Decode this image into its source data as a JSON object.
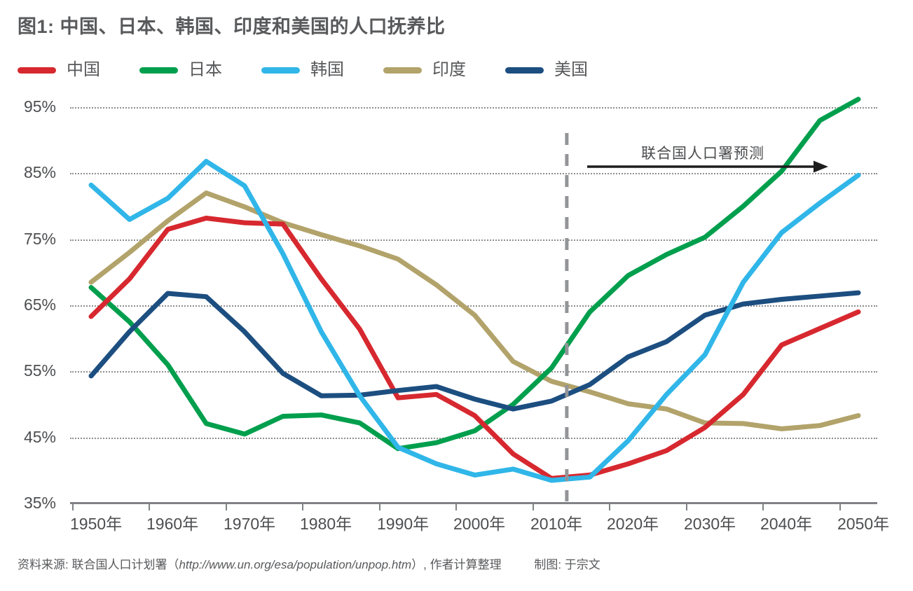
{
  "title": "图1: 中国、日本、韩国、印度和美国的人口抚养比",
  "legend": [
    {
      "id": "china",
      "label": "中国",
      "color": "#D7282F"
    },
    {
      "id": "japan",
      "label": "日本",
      "color": "#009F4D"
    },
    {
      "id": "korea",
      "label": "韩国",
      "color": "#30B6E8"
    },
    {
      "id": "india",
      "label": "印度",
      "color": "#B2A36B"
    },
    {
      "id": "us",
      "label": "美国",
      "color": "#1C4E80"
    }
  ],
  "chart_data": {
    "type": "line",
    "title": "图1: 中国、日本、韩国、印度和美国的人口抚养比",
    "x": [
      1950,
      1955,
      1960,
      1965,
      1970,
      1975,
      1980,
      1985,
      1990,
      1995,
      2000,
      2005,
      2010,
      2015,
      2020,
      2025,
      2030,
      2035,
      2040,
      2045,
      2050
    ],
    "x_tick_labels": [
      "1950年",
      "1960年",
      "1970年",
      "1980年",
      "1990年",
      "2000年",
      "2010年",
      "2020年",
      "2030年",
      "2040年",
      "2050年"
    ],
    "y_tick_labels": [
      "95%",
      "85%",
      "75%",
      "65%",
      "55%",
      "45%",
      "35%"
    ],
    "y_ticks": [
      95,
      85,
      75,
      65,
      55,
      45,
      35
    ],
    "ylim": [
      35,
      95
    ],
    "xlim": [
      1950,
      2050
    ],
    "grid": "horizontal-dotted",
    "legend_position": "top-left",
    "series": [
      {
        "id": "india",
        "name": "印度",
        "color": "#B2A36B",
        "values": [
          68.5,
          73.0,
          77.8,
          82.0,
          79.9,
          77.5,
          75.7,
          74.0,
          72.0,
          68.1,
          63.5,
          56.5,
          53.5,
          51.9,
          50.1,
          49.3,
          47.2,
          47.1,
          46.3,
          46.8,
          48.3
        ]
      },
      {
        "id": "japan",
        "name": "日本",
        "color": "#009F4D",
        "values": [
          67.7,
          62.5,
          56.0,
          47.1,
          45.5,
          48.2,
          48.4,
          47.2,
          43.3,
          44.2,
          46.0,
          50.0,
          55.5,
          64.0,
          69.5,
          72.7,
          75.3,
          80.0,
          85.3,
          93.0,
          96.2
        ]
      },
      {
        "id": "china",
        "name": "中国",
        "color": "#D7282F",
        "values": [
          63.3,
          69.0,
          76.5,
          78.2,
          77.5,
          77.3,
          69.0,
          61.4,
          51.0,
          51.5,
          48.3,
          42.5,
          38.8,
          39.3,
          41.0,
          43.0,
          46.5,
          51.5,
          59.0,
          61.5,
          64.0
        ]
      },
      {
        "id": "us",
        "name": "美国",
        "color": "#1C4E80",
        "values": [
          54.3,
          61.0,
          66.8,
          66.3,
          61.0,
          54.7,
          51.3,
          51.4,
          52.1,
          52.7,
          50.8,
          49.3,
          50.5,
          53.0,
          57.2,
          59.5,
          63.5,
          65.2,
          65.9,
          66.4,
          66.9
        ]
      },
      {
        "id": "korea",
        "name": "韩国",
        "color": "#30B6E8",
        "values": [
          83.2,
          78.0,
          81.2,
          86.8,
          83.1,
          72.8,
          61.0,
          51.3,
          43.5,
          41.0,
          39.3,
          40.2,
          38.5,
          39.0,
          44.5,
          51.5,
          57.5,
          68.5,
          76.0,
          80.5,
          84.7
        ]
      }
    ],
    "forecast_divider": {
      "year": 2012,
      "color": "#929497",
      "style": "dashed-vertical"
    },
    "annotation": {
      "text": "联合国人口署预测",
      "arrow_color": "#1E1E1E",
      "arrow_direction": "right"
    }
  },
  "source": {
    "prefix": "资料来源: 联合国人口计划署（",
    "url": "http://www.un.org/esa/population/unpop.htm",
    "suffix": "）, 作者计算整理",
    "credit": "制图: 于宗文"
  }
}
